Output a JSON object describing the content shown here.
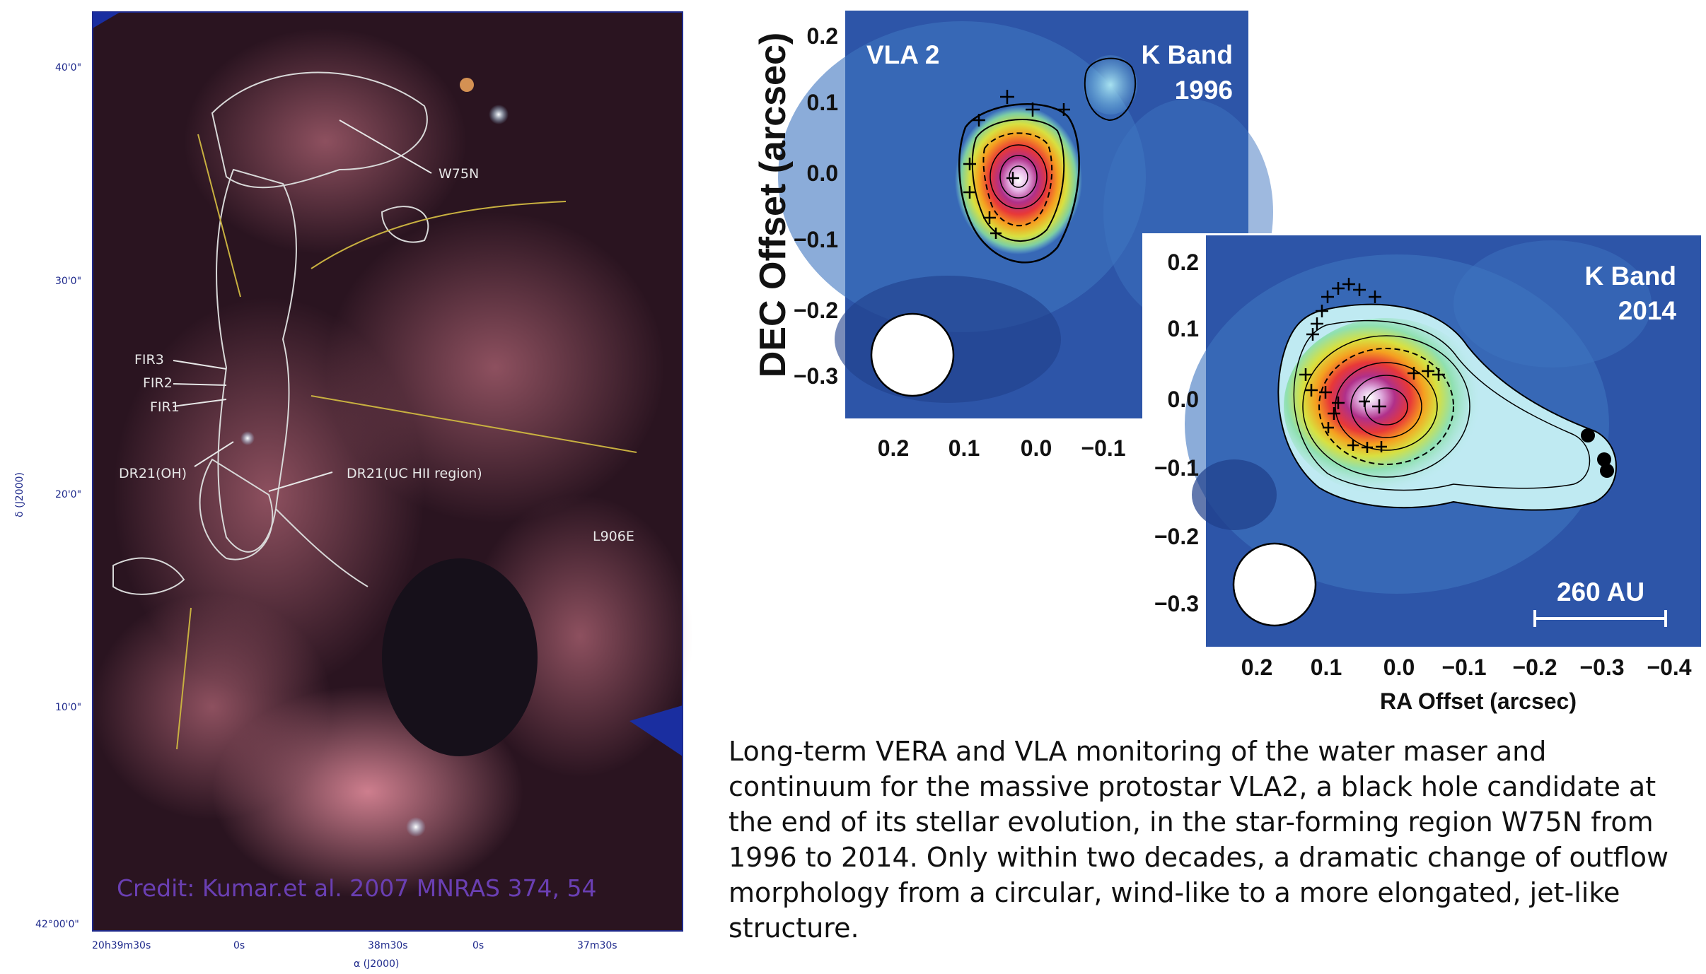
{
  "left_image": {
    "dec_ticks": [
      "40'0\"",
      "30'0\"",
      "20'0\"",
      "10'0\"",
      "42°00'0\""
    ],
    "dec_axis_label": "δ (J2000)",
    "ra_ticks": [
      "20h39m30s",
      "0s",
      "38m30s",
      "0s",
      "37m30s"
    ],
    "ra_axis_label": "α  (J2000)",
    "labels": {
      "w75n": "W75N",
      "fir3": "FIR3",
      "fir2": "FIR2",
      "fir1": "FIR1",
      "dr21_oh": "DR21(OH)",
      "dr21_uc": "DR21(UC HII region)",
      "l906e": "L906E"
    },
    "credit": "Credit: Kumar.et al. 2007 MNRAS 374, 54"
  },
  "panel_1996": {
    "name_label": "VLA 2",
    "band_label": "K Band",
    "year_label": "1996",
    "y_axis_title": "DEC Offset (arcsec)",
    "y_ticks": [
      "0.2",
      "0.1",
      "0.0",
      "−0.1",
      "−0.2",
      "−0.3"
    ],
    "x_ticks": [
      "0.2",
      "0.1",
      "0.0",
      "−0.1"
    ]
  },
  "panel_2014": {
    "band_label": "K Band",
    "year_label": "2014",
    "scale_label": "260 AU",
    "x_axis_title": "RA Offset (arcsec)",
    "y_ticks": [
      "0.2",
      "0.1",
      "0.0",
      "−0.1",
      "−0.2",
      "−0.3"
    ],
    "x_ticks": [
      "0.2",
      "0.1",
      "0.0",
      "−0.1",
      "−0.2",
      "−0.3",
      "−0.4"
    ]
  },
  "caption": "Long-term VERA and VLA monitoring of the water maser and continuum for the massive protostar VLA2, a black hole candidate at the end of its stellar evolution, in the star-forming region W75N from 1996 to 2014. Only within two decades, a dramatic change of outflow morphology from a circular, wind-like to a more elongated, jet-like structure.",
  "colors": {
    "map_background": "#2d55a8",
    "frame_blue": "#1f2a8c",
    "credit_purple": "#6a3fb3"
  }
}
